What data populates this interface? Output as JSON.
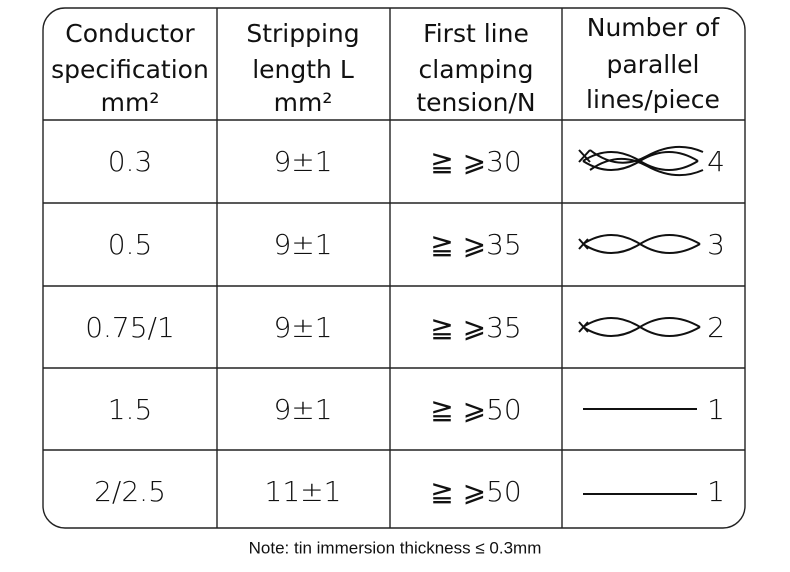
{
  "table": {
    "header": [
      [
        "Conductor",
        "specification",
        "mm²"
      ],
      [
        "Stripping",
        "length L",
        "mm²"
      ],
      [
        "First line",
        "clamping",
        "tension/N"
      ],
      [
        "Number of",
        "parallel",
        "lines/piece"
      ]
    ],
    "rows": [
      [
        "0.3",
        "9±1",
        "≧ ⩾30",
        "4"
      ],
      [
        "0.5",
        "9±1",
        "≧ ⩾35",
        "3"
      ],
      [
        "0.75/1",
        "9±1",
        "≧ ⩾35",
        "2"
      ],
      [
        "1.5",
        "9±1",
        "≧ ⩾50",
        "1"
      ],
      [
        "2/2.5",
        "11±1",
        "≧ ⩾50",
        "1"
      ]
    ]
  },
  "note": "Note: tin immersion thickness ≤ 0.3mm"
}
